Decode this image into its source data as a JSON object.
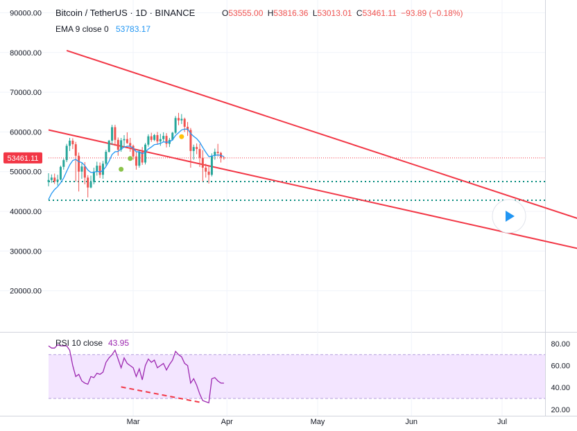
{
  "header": {
    "symbol": "Bitcoin / TetherUS · 1D · BINANCE",
    "o_label": "O",
    "o_value": "53555.00",
    "h_label": "H",
    "h_value": "53816.36",
    "l_label": "L",
    "l_value": "53013.01",
    "c_label": "C",
    "c_value": "53461.11",
    "change": "−93.89 (−0.18%)"
  },
  "ema": {
    "label": "EMA 9 close 0",
    "value": "53783.17"
  },
  "rsi": {
    "label": "RSI 10 close",
    "value": "43.95"
  },
  "price_tag": "53461.11",
  "colors": {
    "up": "#26a69a",
    "down": "#ef5350",
    "trend": "#f23645",
    "ema": "#2196f3",
    "rsi": "#9c27b0",
    "rsi_band": "#f3e5ff",
    "support": "#00897b"
  },
  "chart_data": {
    "type": "candlestick",
    "price_axis": {
      "ylim": [
        10000,
        90000
      ],
      "ticks": [
        "90000.00",
        "80000.00",
        "70000.00",
        "60000.00",
        "50000.00",
        "40000.00",
        "30000.00",
        "20000.00"
      ]
    },
    "rsi_axis": {
      "ylim": [
        20,
        80
      ],
      "ticks": [
        "80.00",
        "60.00",
        "40.00",
        "20.00"
      ],
      "band": [
        30,
        70
      ]
    },
    "time_axis": {
      "labels": [
        "Mar",
        "Apr",
        "May",
        "Jun",
        "Jul"
      ],
      "label_days": [
        28,
        59,
        89,
        120,
        150
      ],
      "first_day_label": "2021-02-01"
    },
    "candles": [
      [
        47400,
        49600,
        46300,
        47900
      ],
      [
        47900,
        49300,
        47200,
        48500
      ],
      [
        48500,
        49500,
        46900,
        47500
      ],
      [
        47500,
        49200,
        46500,
        48000
      ],
      [
        48000,
        51500,
        47800,
        51200
      ],
      [
        51200,
        53300,
        50500,
        52900
      ],
      [
        52900,
        57000,
        52400,
        56500
      ],
      [
        56500,
        58500,
        55200,
        57800
      ],
      [
        57800,
        58400,
        55700,
        56900
      ],
      [
        56900,
        57500,
        47500,
        54000
      ],
      [
        54000,
        54800,
        45000,
        50000
      ],
      [
        50000,
        52200,
        48200,
        51300
      ],
      [
        51300,
        52400,
        46800,
        48500
      ],
      [
        48500,
        49100,
        43500,
        46000
      ],
      [
        46000,
        49000,
        45800,
        47400
      ],
      [
        47400,
        51000,
        46800,
        50000
      ],
      [
        50000,
        52500,
        49000,
        51500
      ],
      [
        51500,
        52300,
        48400,
        49200
      ],
      [
        49200,
        52700,
        48200,
        52000
      ],
      [
        52000,
        55500,
        51500,
        55000
      ],
      [
        55000,
        58000,
        54800,
        57800
      ],
      [
        57800,
        61800,
        56700,
        61200
      ],
      [
        61200,
        61800,
        56500,
        58000
      ],
      [
        58000,
        58600,
        54000,
        55500
      ],
      [
        55500,
        58500,
        55000,
        57900
      ],
      [
        57900,
        59200,
        56300,
        58200
      ],
      [
        58200,
        59900,
        57000,
        57200
      ],
      [
        57200,
        58500,
        55000,
        56500
      ],
      [
        56500,
        56800,
        53000,
        53800
      ],
      [
        53800,
        55000,
        50500,
        51500
      ],
      [
        51500,
        55500,
        51000,
        55000
      ],
      [
        55000,
        56200,
        51700,
        52300
      ],
      [
        52300,
        57200,
        51800,
        56800
      ],
      [
        56800,
        59400,
        56300,
        58900
      ],
      [
        58900,
        59800,
        57500,
        58000
      ],
      [
        58000,
        59500,
        57700,
        59200
      ],
      [
        59200,
        60000,
        56800,
        57600
      ],
      [
        57600,
        59500,
        56500,
        58200
      ],
      [
        58200,
        59900,
        57500,
        59000
      ],
      [
        59000,
        59700,
        56100,
        57000
      ],
      [
        57000,
        58500,
        56200,
        58000
      ],
      [
        58000,
        60000,
        57800,
        59800
      ],
      [
        59800,
        64000,
        59500,
        63500
      ],
      [
        63500,
        64800,
        61700,
        62900
      ],
      [
        62900,
        64500,
        62000,
        63300
      ],
      [
        63300,
        63600,
        60000,
        61300
      ],
      [
        61300,
        62500,
        59000,
        60500
      ],
      [
        60500,
        61000,
        51000,
        55200
      ],
      [
        55200,
        56800,
        53000,
        56200
      ],
      [
        56200,
        57100,
        54400,
        55700
      ],
      [
        55700,
        57000,
        51200,
        53500
      ],
      [
        53500,
        55400,
        47500,
        51000
      ],
      [
        51000,
        52000,
        48500,
        50000
      ],
      [
        50000,
        51500,
        47000,
        49200
      ],
      [
        49200,
        54600,
        48800,
        54000
      ],
      [
        54000,
        55800,
        53000,
        55000
      ],
      [
        55000,
        57000,
        53800,
        54700
      ],
      [
        54700,
        55000,
        52300,
        53555
      ],
      [
        53555,
        53816,
        53013,
        53461
      ]
    ],
    "ema9": [
      43000,
      44500,
      45500,
      46200,
      47200,
      48400,
      50100,
      51700,
      52800,
      53100,
      52500,
      52300,
      51500,
      50400,
      49800,
      49800,
      50100,
      49900,
      50300,
      51300,
      52600,
      54300,
      55000,
      55100,
      55700,
      56200,
      56400,
      56400,
      55900,
      55000,
      55000,
      54500,
      54900,
      55700,
      56200,
      56800,
      56900,
      57100,
      57500,
      57400,
      57500,
      58000,
      59100,
      59800,
      60500,
      60700,
      60700,
      59600,
      58900,
      58300,
      57400,
      56100,
      54900,
      53800,
      53900,
      54100,
      54200,
      54100,
      53783
    ],
    "rsi": [
      78,
      76,
      76,
      79,
      78,
      78,
      78,
      74,
      60,
      50,
      52,
      46,
      44,
      43,
      50,
      49,
      53,
      52,
      54,
      63,
      67,
      70,
      74,
      66,
      58,
      67,
      62,
      60,
      58,
      50,
      57,
      47,
      60,
      66,
      63,
      65,
      58,
      60,
      62,
      56,
      61,
      65,
      73,
      70,
      68,
      62,
      60,
      44,
      48,
      42,
      34,
      28,
      27,
      26,
      48,
      49,
      46,
      44,
      43.95
    ],
    "trendlines": [
      {
        "name": "upper",
        "from": [
          6,
          80500
        ],
        "to": [
          177,
          37700
        ]
      },
      {
        "name": "lower",
        "from": [
          0,
          60500
        ],
        "to": [
          177,
          30300
        ]
      }
    ],
    "rsi_divergence": {
      "from": [
        24,
        40.5
      ],
      "to": [
        51,
        26
      ]
    },
    "support_levels": [
      47500,
      42800
    ],
    "last_price_level": 53461.11,
    "markers": [
      {
        "day": 24,
        "price": 50600,
        "color": "#8bc34a"
      },
      {
        "day": 27,
        "price": 53300,
        "color": "#8bc34a"
      },
      {
        "day": 44,
        "price": 58800,
        "color": "#ffc107"
      }
    ],
    "last_day_index": 177
  }
}
